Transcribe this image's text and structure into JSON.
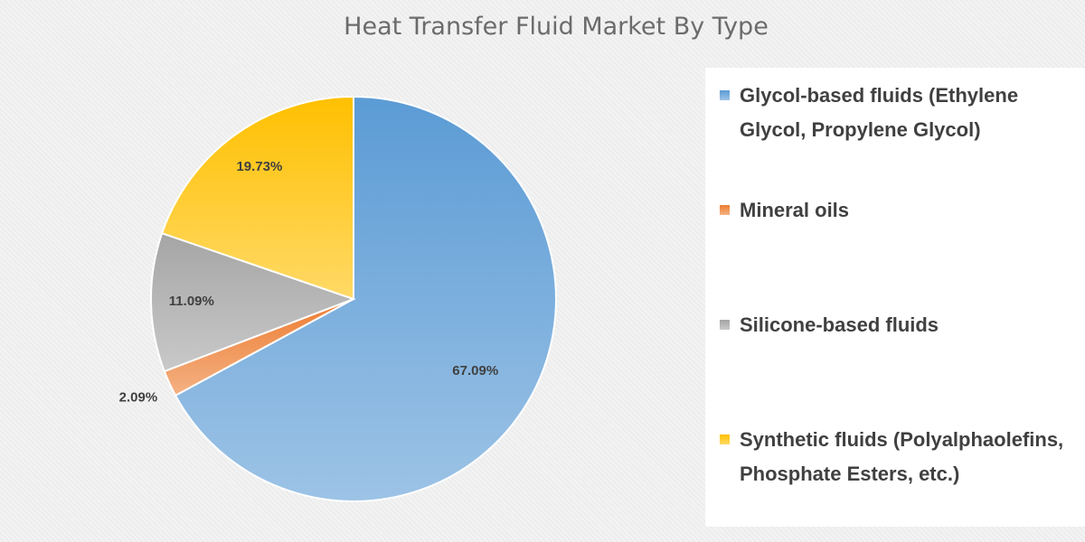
{
  "chart_data": {
    "type": "pie",
    "title": "Heat Transfer Fluid Market By Type",
    "categories": [
      "Glycol-based fluids (Ethylene Glycol, Propylene Glycol)",
      "Mineral oils",
      "Silicone-based fluids",
      "Synthetic fluids (Polyalphaolefins, Phosphate Esters, etc.)"
    ],
    "values": [
      67.09,
      2.09,
      11.09,
      19.73
    ],
    "value_labels": [
      "67.09%",
      "2.09%",
      "11.09%",
      "19.73%"
    ],
    "colors": [
      "#5b9bd5",
      "#ed7d31",
      "#a5a5a5",
      "#ffc000"
    ],
    "legend": "right"
  }
}
